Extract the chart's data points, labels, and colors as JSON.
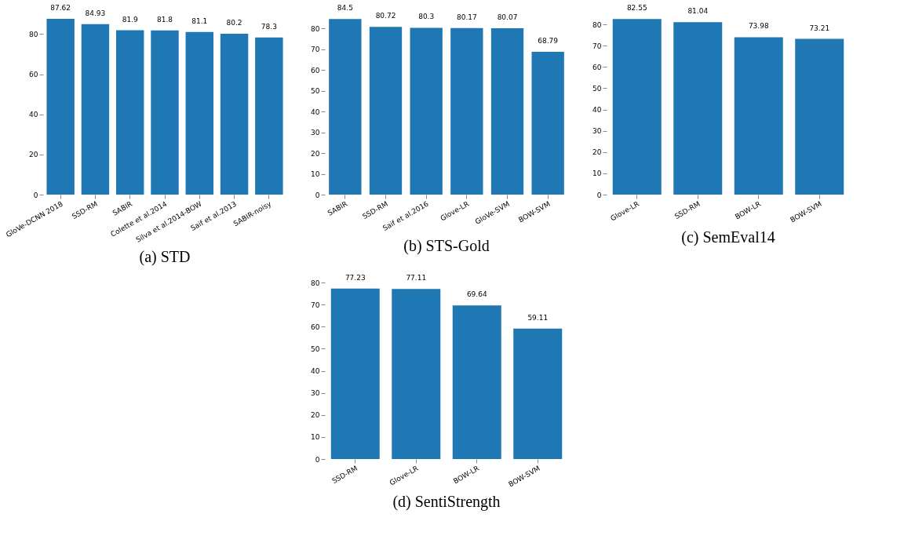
{
  "chart_data": [
    {
      "type": "bar",
      "title": "(a) STD",
      "categories": [
        "GloVe-DCNN 2018",
        "SSD-RM",
        "SABIR",
        "Colette et al.2014",
        "Silva et al.2014-BOW",
        "Saif et al.2013",
        "SABIR-noisy"
      ],
      "values": [
        87.62,
        84.93,
        81.9,
        81.8,
        81.1,
        80.2,
        78.3
      ],
      "color": "#1f77b4",
      "ylim": [
        0,
        88
      ],
      "yticks": [
        0,
        20,
        40,
        60,
        80
      ],
      "data_labels": true,
      "grid": false
    },
    {
      "type": "bar",
      "title": "(b) STS-Gold",
      "categories": [
        "SABIR",
        "SSD-RM",
        "Saif et al.2016",
        "Glove-LR",
        "GloVe-SVM",
        "BOW-SVM"
      ],
      "values": [
        84.5,
        80.72,
        80.3,
        80.17,
        80.07,
        68.79
      ],
      "color": "#1f77b4",
      "ylim": [
        0,
        85
      ],
      "yticks": [
        0,
        10,
        20,
        30,
        40,
        50,
        60,
        70,
        80
      ],
      "data_labels": true,
      "grid": false
    },
    {
      "type": "bar",
      "title": "(c) SemEval14",
      "categories": [
        "Glove-LR",
        "SSD-RM",
        "BOW-LR",
        "BOW-SVM"
      ],
      "values": [
        82.55,
        81.04,
        73.98,
        73.21
      ],
      "color": "#1f77b4",
      "ylim": [
        0,
        83
      ],
      "yticks": [
        0,
        10,
        20,
        30,
        40,
        50,
        60,
        70,
        80
      ],
      "data_labels": true,
      "grid": false
    },
    {
      "type": "bar",
      "title": "(d) SentiStrength",
      "categories": [
        "SSD-RM",
        "Glove-LR",
        "BOW-LR",
        "BOW-SVM"
      ],
      "values": [
        77.23,
        77.11,
        69.64,
        59.11
      ],
      "color": "#1f77b4",
      "ylim": [
        0,
        80
      ],
      "yticks": [
        0,
        10,
        20,
        30,
        40,
        50,
        60,
        70,
        80
      ],
      "data_labels": true,
      "grid": false
    }
  ]
}
